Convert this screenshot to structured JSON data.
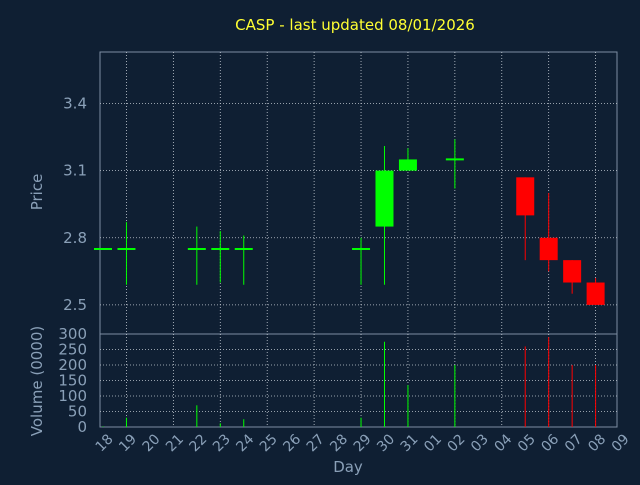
{
  "chart_data": [
    {
      "type": "candlestick",
      "title": "CASP - last updated 08/01/2026",
      "ylabel": "Price",
      "xlabel": "",
      "ylim": [
        2.37,
        3.63
      ],
      "yticks": [
        "2.5",
        "2.8",
        "3.1",
        "3.4"
      ],
      "grid": true,
      "categories": [
        "18",
        "19",
        "20",
        "21",
        "22",
        "23",
        "24",
        "25",
        "26",
        "27",
        "28",
        "29",
        "30",
        "31",
        "01",
        "02",
        "03",
        "04",
        "05",
        "06",
        "07",
        "08",
        "09"
      ],
      "candles": [
        {
          "day": "18",
          "open": 2.75,
          "high": 2.75,
          "low": 2.75,
          "close": 2.75
        },
        {
          "day": "19",
          "open": 2.75,
          "high": 2.87,
          "low": 2.59,
          "close": 2.75
        },
        {
          "day": "22",
          "open": 2.75,
          "high": 2.85,
          "low": 2.59,
          "close": 2.75
        },
        {
          "day": "23",
          "open": 2.75,
          "high": 2.83,
          "low": 2.6,
          "close": 2.75
        },
        {
          "day": "24",
          "open": 2.75,
          "high": 2.81,
          "low": 2.59,
          "close": 2.75
        },
        {
          "day": "29",
          "open": 2.75,
          "high": 2.8,
          "low": 2.59,
          "close": 2.75
        },
        {
          "day": "30",
          "open": 2.85,
          "high": 3.21,
          "low": 2.59,
          "close": 3.1
        },
        {
          "day": "31",
          "open": 3.1,
          "high": 3.2,
          "low": 3.1,
          "close": 3.15
        },
        {
          "day": "02",
          "open": 3.15,
          "high": 3.24,
          "low": 3.02,
          "close": 3.15
        },
        {
          "day": "05",
          "open": 3.07,
          "high": 3.07,
          "low": 2.7,
          "close": 2.9
        },
        {
          "day": "06",
          "open": 2.8,
          "high": 3.0,
          "low": 2.65,
          "close": 2.7
        },
        {
          "day": "07",
          "open": 2.7,
          "high": 2.7,
          "low": 2.55,
          "close": 2.6
        },
        {
          "day": "08",
          "open": 2.6,
          "high": 2.62,
          "low": 2.5,
          "close": 2.5
        }
      ]
    },
    {
      "type": "bar",
      "title": "",
      "ylabel": "Volume (0000)",
      "xlabel": "Day",
      "ylim": [
        0,
        300
      ],
      "yticks": [
        "0",
        "50",
        "100",
        "150",
        "200",
        "250",
        "300"
      ],
      "grid": true,
      "categories": [
        "18",
        "19",
        "20",
        "21",
        "22",
        "23",
        "24",
        "25",
        "26",
        "27",
        "28",
        "29",
        "30",
        "31",
        "01",
        "02",
        "03",
        "04",
        "05",
        "06",
        "07",
        "08",
        "09"
      ],
      "bars": [
        {
          "day": "18",
          "value": 2,
          "direction": "up"
        },
        {
          "day": "19",
          "value": 30,
          "direction": "up"
        },
        {
          "day": "22",
          "value": 70,
          "direction": "up"
        },
        {
          "day": "23",
          "value": 12,
          "direction": "up"
        },
        {
          "day": "24",
          "value": 25,
          "direction": "up"
        },
        {
          "day": "29",
          "value": 30,
          "direction": "up"
        },
        {
          "day": "30",
          "value": 275,
          "direction": "up"
        },
        {
          "day": "31",
          "value": 135,
          "direction": "up"
        },
        {
          "day": "02",
          "value": 200,
          "direction": "up"
        },
        {
          "day": "05",
          "value": 260,
          "direction": "down"
        },
        {
          "day": "06",
          "value": 290,
          "direction": "down"
        },
        {
          "day": "07",
          "value": 200,
          "direction": "down"
        },
        {
          "day": "08",
          "value": 200,
          "direction": "down"
        }
      ]
    }
  ],
  "colors": {
    "background": "#0f1f33",
    "axis": "#7d8ea3",
    "grid": "#c4cbd4",
    "title": "#ffff33",
    "label": "#8aa0b8",
    "up": "#00ff00",
    "down": "#ff0000"
  }
}
